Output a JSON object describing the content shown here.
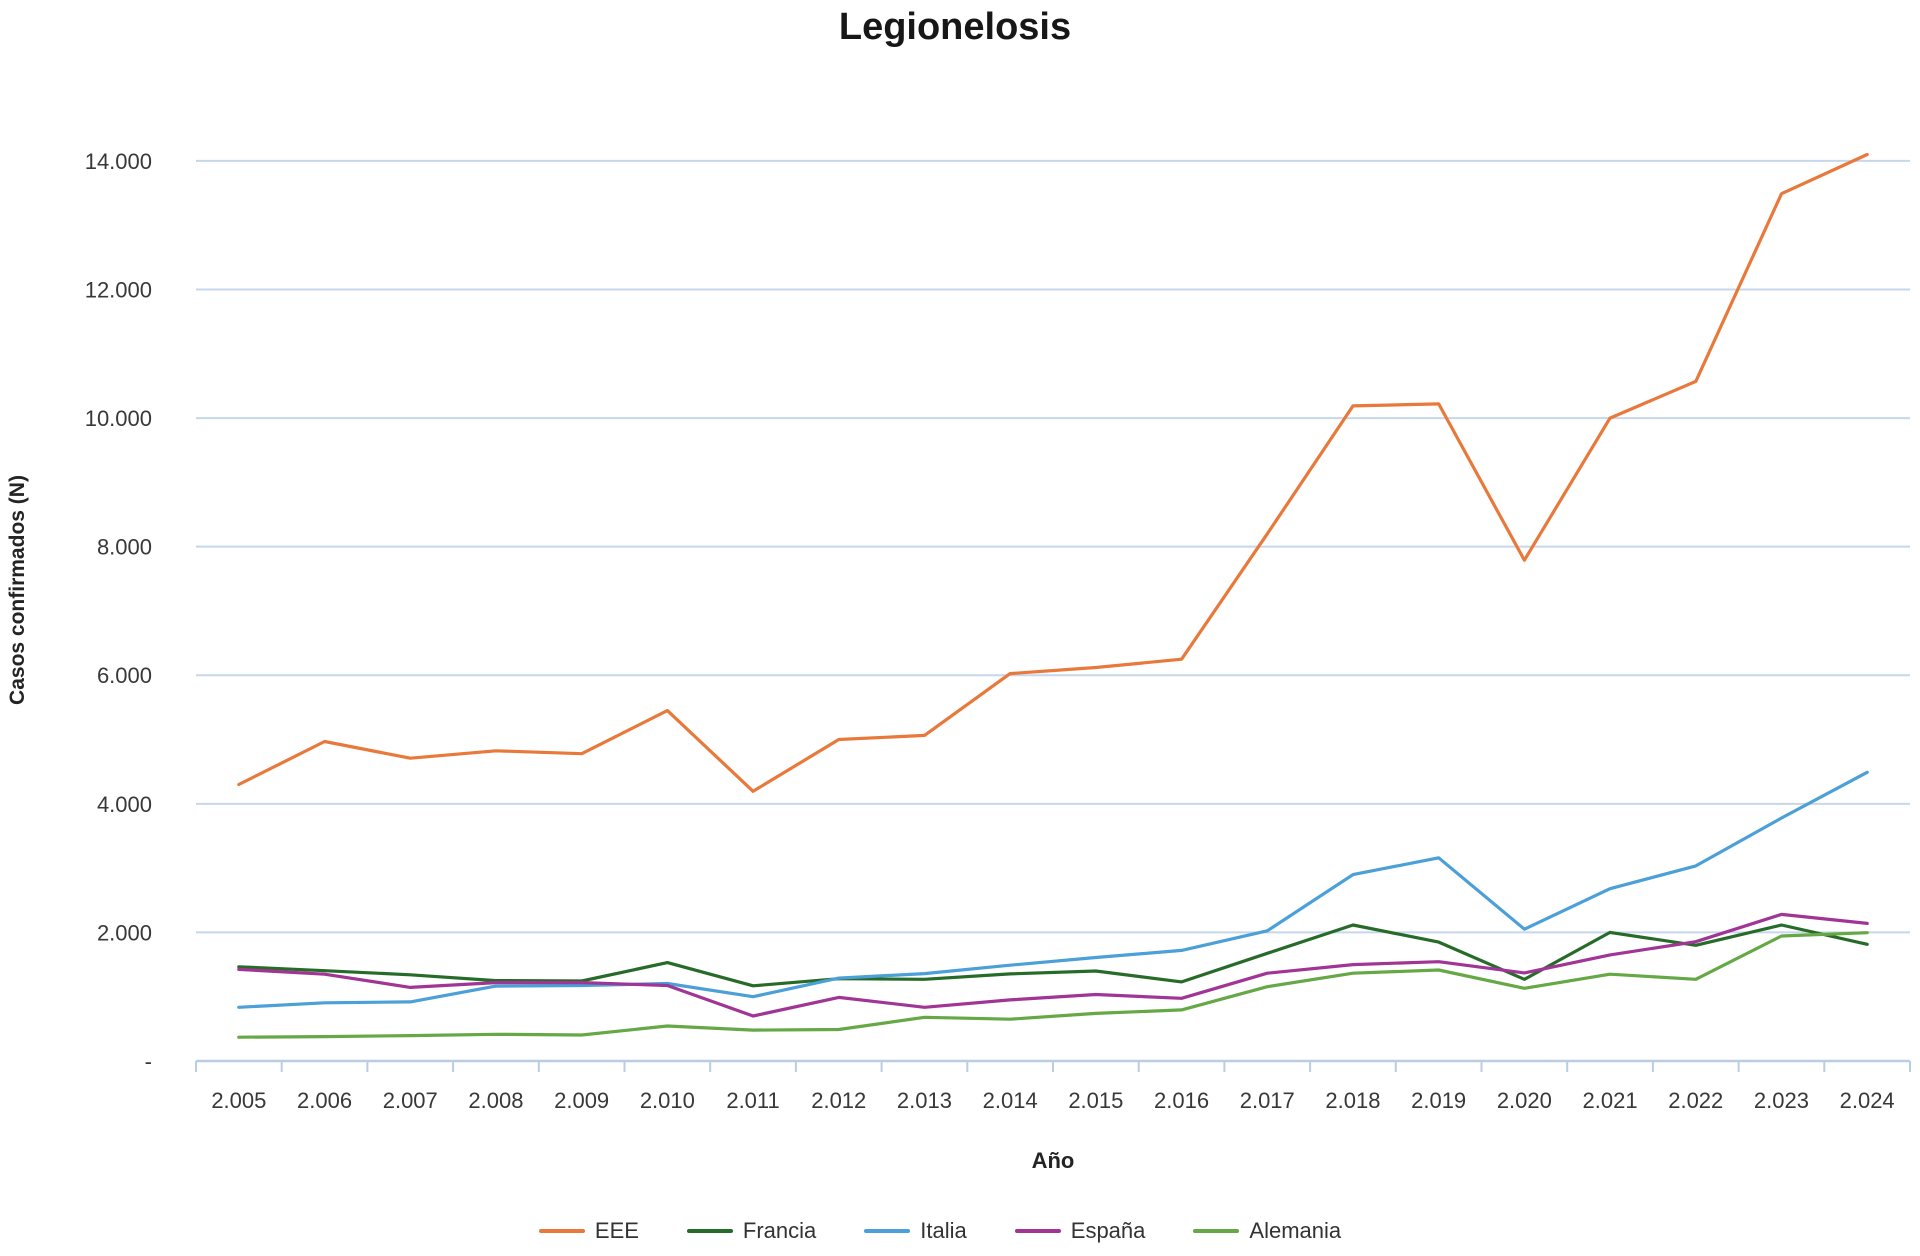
{
  "title": "Legionelosis",
  "y_axis": {
    "title": "Casos confirmados (N)"
  },
  "x_axis": {
    "title": "Año"
  },
  "colors": {
    "gridline": "#C7D7EB",
    "axis_line": "#B9CDE5",
    "tick_text": "#383838",
    "title_text": "#171717",
    "eee": "#E8793A",
    "francia": "#276B29",
    "italia": "#4BA0D8",
    "espana": "#A03595",
    "alemania": "#65A845"
  },
  "chart_data": {
    "type": "line",
    "title": "Legionelosis",
    "xlabel": "Año",
    "ylabel": "Casos confirmados (N)",
    "categories": [
      "2.005",
      "2.006",
      "2.007",
      "2.008",
      "2.009",
      "2.010",
      "2.011",
      "2.012",
      "2.013",
      "2.014",
      "2.015",
      "2.016",
      "2.017",
      "2.018",
      "2.019",
      "2.020",
      "2.021",
      "2.022",
      "2.023",
      "2.024"
    ],
    "y_tick_labels": [
      "-",
      "2.000",
      "4.000",
      "6.000",
      "8.000",
      "10.000",
      "12.000",
      "14.000"
    ],
    "ylim": [
      0,
      14000
    ],
    "y_tick_step": 2000,
    "grid": true,
    "legend_position": "bottom",
    "series": [
      {
        "name": "EEE",
        "color": "#E8793A",
        "values": [
          4300,
          4970,
          4710,
          4825,
          4780,
          5450,
          4195,
          5000,
          5065,
          6025,
          6120,
          6250,
          8200,
          10190,
          10220,
          7790,
          10000,
          10570,
          13490,
          14100
        ]
      },
      {
        "name": "Francia",
        "color": "#276B29",
        "values": [
          1465,
          1405,
          1340,
          1250,
          1245,
          1530,
          1170,
          1280,
          1270,
          1355,
          1400,
          1230,
          1675,
          2115,
          1850,
          1270,
          2000,
          1800,
          2115,
          1815
        ]
      },
      {
        "name": "Italia",
        "color": "#4BA0D8",
        "values": [
          835,
          905,
          920,
          1165,
          1175,
          1205,
          1000,
          1290,
          1360,
          1490,
          1610,
          1720,
          2025,
          2900,
          3160,
          2050,
          2680,
          3035,
          3780,
          4490
        ]
      },
      {
        "name": "España",
        "color": "#A03595",
        "values": [
          1425,
          1350,
          1145,
          1220,
          1220,
          1175,
          700,
          990,
          835,
          950,
          1035,
          975,
          1365,
          1500,
          1545,
          1370,
          1650,
          1855,
          2280,
          2140
        ]
      },
      {
        "name": "Alemania",
        "color": "#65A845",
        "values": [
          370,
          380,
          395,
          415,
          405,
          545,
          480,
          490,
          680,
          650,
          740,
          795,
          1155,
          1365,
          1415,
          1130,
          1350,
          1270,
          1945,
          1995
        ]
      }
    ]
  }
}
